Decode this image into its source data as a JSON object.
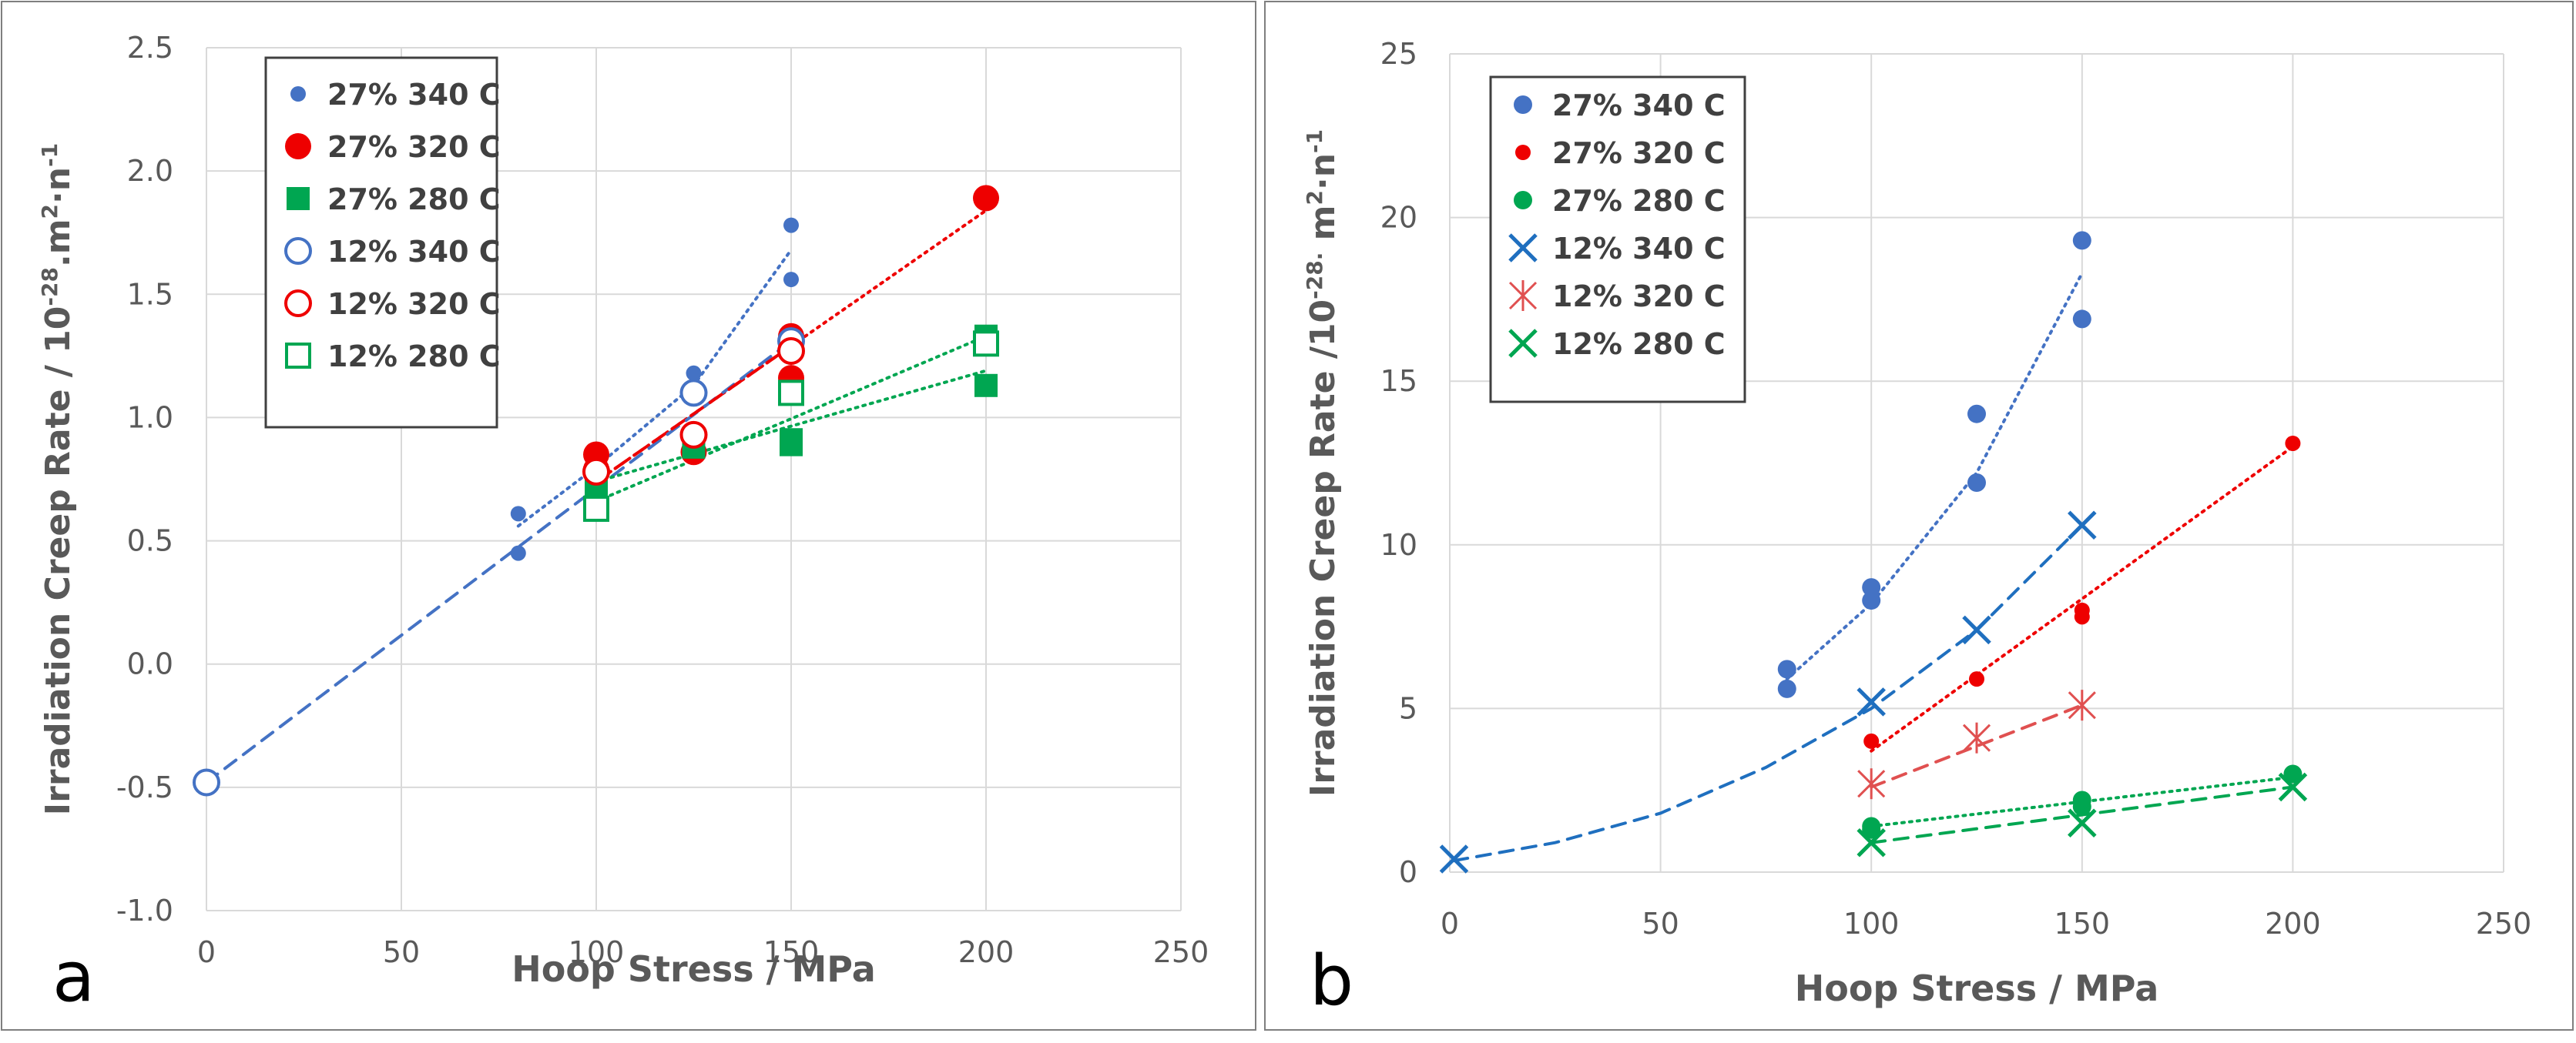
{
  "chart_data": [
    {
      "type": "scatter",
      "panel_label": "a",
      "title": "",
      "xlabel": "Hoop Stress / MPa",
      "ylabel_main": "Irradiation  Creep Rate / 10",
      "ylabel_sup1": "-28",
      "ylabel_mid": ".m",
      "ylabel_sup2": "2",
      "ylabel_mid2": "·n",
      "ylabel_sup3": "-1",
      "xlim": [
        0,
        250
      ],
      "ylim": [
        -1.0,
        2.5
      ],
      "xticks": [
        0,
        50,
        100,
        150,
        200,
        250
      ],
      "yticks": [
        -1.0,
        -0.5,
        0.0,
        0.5,
        1.0,
        1.5,
        2.0,
        2.5
      ],
      "ytick_labels": [
        "-1.0",
        "-0.5",
        "0.0",
        "0.5",
        "1.0",
        "1.5",
        "2.0",
        "2.5"
      ],
      "grid": true,
      "legend_position": "top-left",
      "series": [
        {
          "name": "27% 340 C",
          "color": "#4472c4",
          "marker": "dot-small",
          "x": [
            80,
            80,
            100,
            125,
            125,
            150,
            150
          ],
          "y": [
            0.61,
            0.45,
            0.78,
            1.18,
            0.94,
            1.78,
            1.56
          ],
          "fit": {
            "style": "dotted",
            "points": [
              [
                80,
                0.56
              ],
              [
                100,
                0.8
              ],
              [
                125,
                1.13
              ],
              [
                150,
                1.68
              ]
            ]
          }
        },
        {
          "name": "27% 320 C",
          "color": "#ee0000",
          "marker": "dot-large",
          "x": [
            100,
            100,
            125,
            125,
            150,
            150,
            200
          ],
          "y": [
            0.85,
            0.79,
            0.93,
            0.86,
            1.33,
            1.16,
            1.89
          ],
          "fit": {
            "style": "dotted",
            "points": [
              [
                100,
                0.74
              ],
              [
                200,
                1.84
              ]
            ]
          }
        },
        {
          "name": "27% 280 C",
          "color": "#00a651",
          "marker": "square-filled",
          "x": [
            100,
            100,
            125,
            150,
            150,
            200,
            200
          ],
          "y": [
            0.75,
            0.71,
            0.88,
            0.91,
            0.89,
            1.33,
            1.13
          ],
          "fit": {
            "style": "dotted",
            "points": [
              [
                100,
                0.66
              ],
              [
                200,
                1.33
              ]
            ]
          }
        },
        {
          "name": "12% 340 C",
          "color": "#4472c4",
          "marker": "circle-open",
          "x": [
            0,
            125,
            150
          ],
          "y": [
            -0.48,
            1.1,
            1.31
          ],
          "fit": {
            "style": "dashed",
            "points": [
              [
                0,
                -0.48
              ],
              [
                150,
                1.31
              ]
            ]
          }
        },
        {
          "name": "12% 320 C",
          "color": "#ee0000",
          "marker": "circle-open",
          "x": [
            100,
            125,
            150
          ],
          "y": [
            0.78,
            0.93,
            1.27
          ],
          "fit": {
            "style": "dashed",
            "points": [
              [
                100,
                0.74
              ],
              [
                150,
                1.29
              ]
            ]
          }
        },
        {
          "name": "12% 280 C",
          "color": "#00a651",
          "marker": "square-open",
          "x": [
            100,
            150,
            200
          ],
          "y": [
            0.63,
            1.1,
            1.3
          ],
          "fit": {
            "style": "dotted",
            "points": [
              [
                100,
                0.74
              ],
              [
                200,
                1.19
              ]
            ]
          }
        }
      ]
    },
    {
      "type": "scatter",
      "panel_label": "b",
      "title": "",
      "xlabel": "Hoop Stress / MPa",
      "ylabel_main": "Irradiation  Creep Rate /10",
      "ylabel_sup1": "-28.",
      "ylabel_mid": " m",
      "ylabel_sup2": "2",
      "ylabel_mid2": "·n",
      "ylabel_sup3": "-1",
      "xlim": [
        0,
        250
      ],
      "ylim": [
        0,
        25
      ],
      "xticks": [
        0,
        50,
        100,
        150,
        200,
        250
      ],
      "yticks": [
        0,
        5,
        10,
        15,
        20,
        25
      ],
      "ytick_labels": [
        "0",
        "5",
        "10",
        "15",
        "20",
        "25"
      ],
      "grid": true,
      "legend_position": "top-left",
      "series": [
        {
          "name": "27% 340 C",
          "color": "#4472c4",
          "marker": "dot-medium",
          "x": [
            80,
            80,
            100,
            100,
            125,
            125,
            150,
            150
          ],
          "y": [
            6.2,
            5.6,
            8.7,
            8.3,
            14.0,
            11.9,
            19.3,
            16.9
          ],
          "fit": {
            "style": "dotted",
            "points": [
              [
                80,
                5.9
              ],
              [
                100,
                8.2
              ],
              [
                125,
                12.2
              ],
              [
                150,
                18.3
              ]
            ]
          }
        },
        {
          "name": "27% 320 C",
          "color": "#ee0000",
          "marker": "dot-small",
          "x": [
            100,
            125,
            150,
            150,
            200
          ],
          "y": [
            4.0,
            5.9,
            8.0,
            7.8,
            13.1
          ],
          "fit": {
            "style": "dotted",
            "points": [
              [
                100,
                3.7
              ],
              [
                200,
                13.0
              ]
            ]
          }
        },
        {
          "name": "27% 280 C",
          "color": "#00a651",
          "marker": "dot-medium",
          "x": [
            100,
            100,
            150,
            150,
            200
          ],
          "y": [
            1.4,
            1.3,
            2.2,
            2.0,
            3.0
          ],
          "fit": {
            "style": "dotted",
            "points": [
              [
                100,
                1.4
              ],
              [
                200,
                2.9
              ]
            ]
          }
        },
        {
          "name": "12% 340 C",
          "color": "#1f6fbf",
          "marker": "x",
          "x": [
            1,
            100,
            125,
            150
          ],
          "y": [
            0.4,
            5.2,
            7.4,
            10.6
          ],
          "fit": {
            "style": "dashed",
            "points": [
              [
                1,
                0.35
              ],
              [
                25,
                0.9
              ],
              [
                50,
                1.8
              ],
              [
                75,
                3.2
              ],
              [
                100,
                5.0
              ],
              [
                125,
                7.4
              ],
              [
                150,
                10.6
              ]
            ]
          }
        },
        {
          "name": "12% 320 C",
          "color": "#e05050",
          "marker": "asterisk",
          "x": [
            100,
            125,
            150
          ],
          "y": [
            2.7,
            4.1,
            5.1
          ],
          "fit": {
            "style": "dashed",
            "points": [
              [
                100,
                2.6
              ],
              [
                150,
                5.1
              ]
            ]
          }
        },
        {
          "name": "12% 280 C",
          "color": "#00a651",
          "marker": "x",
          "x": [
            100,
            150,
            200
          ],
          "y": [
            0.9,
            1.5,
            2.6
          ],
          "fit": {
            "style": "dashed",
            "points": [
              [
                100,
                0.9
              ],
              [
                200,
                2.6
              ]
            ]
          }
        }
      ]
    }
  ]
}
